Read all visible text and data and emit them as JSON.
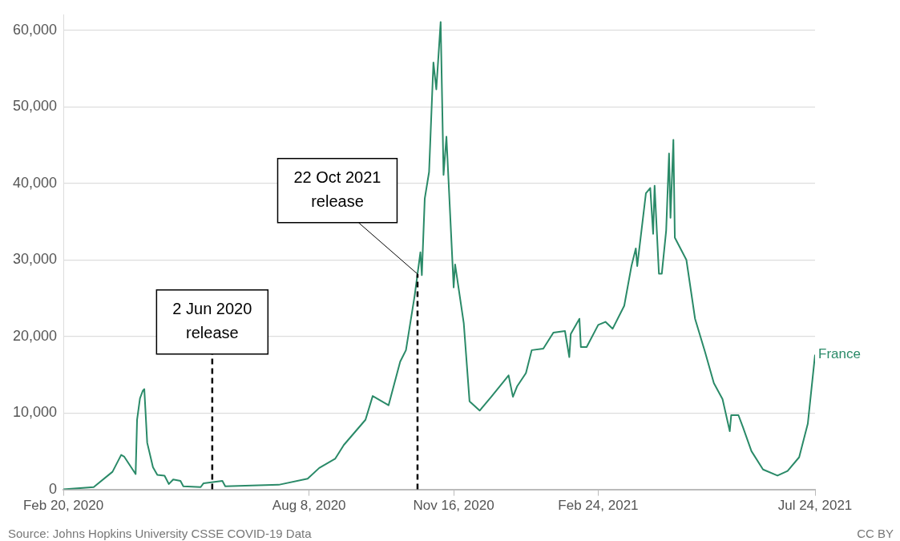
{
  "chart_data": {
    "type": "line",
    "x": [
      "2020-02-20",
      "2020-03-12",
      "2020-03-25",
      "2020-03-31",
      "2020-04-02",
      "2020-04-10",
      "2020-04-11",
      "2020-04-13",
      "2020-04-15",
      "2020-04-16",
      "2020-04-18",
      "2020-04-22",
      "2020-04-25",
      "2020-04-30",
      "2020-05-03",
      "2020-05-06",
      "2020-05-11",
      "2020-05-13",
      "2020-05-25",
      "2020-05-27",
      "2020-06-09",
      "2020-06-11",
      "2020-07-18",
      "2020-08-07",
      "2020-08-15",
      "2020-08-26",
      "2020-09-01",
      "2020-09-16",
      "2020-09-21",
      "2020-10-02",
      "2020-10-10",
      "2020-10-14",
      "2020-10-20",
      "2020-10-24",
      "2020-10-25",
      "2020-10-27",
      "2020-10-30",
      "2020-11-02",
      "2020-11-04",
      "2020-11-07",
      "2020-11-09",
      "2020-11-11",
      "2020-11-16",
      "2020-11-17",
      "2020-11-23",
      "2020-11-27",
      "2020-12-04",
      "2020-12-12",
      "2020-12-21",
      "2020-12-24",
      "2020-12-27",
      "2020-12-30",
      "2021-01-05",
      "2021-01-09",
      "2021-01-17",
      "2021-01-24",
      "2021-02-01",
      "2021-02-04",
      "2021-02-05",
      "2021-02-11",
      "2021-02-12",
      "2021-02-16",
      "2021-02-24",
      "2021-03-01",
      "2021-03-06",
      "2021-03-14",
      "2021-03-19",
      "2021-03-22",
      "2021-03-23",
      "2021-03-29",
      "2021-04-01",
      "2021-04-03",
      "2021-04-04",
      "2021-04-07",
      "2021-04-09",
      "2021-04-12",
      "2021-04-14",
      "2021-04-15",
      "2021-04-17",
      "2021-04-18",
      "2021-04-26",
      "2021-05-02",
      "2021-05-09",
      "2021-05-15",
      "2021-05-21",
      "2021-05-26",
      "2021-05-27",
      "2021-06-01",
      "2021-06-04",
      "2021-06-10",
      "2021-06-18",
      "2021-06-28",
      "2021-07-05",
      "2021-07-13",
      "2021-07-19",
      "2021-07-24"
    ],
    "series": [
      {
        "name": "France",
        "color": "#2a8a68",
        "values": [
          0,
          300,
          2300,
          4500,
          4300,
          2000,
          9100,
          11900,
          12900,
          13100,
          6100,
          2900,
          1900,
          1800,
          700,
          1300,
          1100,
          400,
          300,
          800,
          1100,
          400,
          600,
          1400,
          2800,
          4000,
          5800,
          9100,
          12200,
          11000,
          16700,
          18200,
          25300,
          31000,
          28000,
          38000,
          41500,
          55800,
          52300,
          61100,
          41100,
          46100,
          26400,
          29400,
          21700,
          11500,
          10300,
          12100,
          14200,
          14900,
          12100,
          13500,
          15200,
          18200,
          18400,
          20500,
          20700,
          17300,
          20300,
          22300,
          18600,
          18600,
          21500,
          21900,
          21000,
          24000,
          29200,
          31500,
          29200,
          38700,
          39400,
          33400,
          39700,
          28200,
          28200,
          33800,
          43900,
          35500,
          45700,
          32900,
          30000,
          22300,
          17900,
          13900,
          11800,
          7600,
          9700,
          9700,
          8200,
          5000,
          2600,
          1800,
          2400,
          4200,
          8600,
          17600
        ]
      }
    ],
    "xlim": [
      "2020-02-20",
      "2021-07-24"
    ],
    "xticks": [
      {
        "value": "2020-02-20",
        "label": "Feb 20, 2020"
      },
      {
        "value": "2020-08-08",
        "label": "Aug 8, 2020"
      },
      {
        "value": "2020-11-16",
        "label": "Nov 16, 2020"
      },
      {
        "value": "2021-02-24",
        "label": "Feb 24, 2021"
      },
      {
        "value": "2021-07-24",
        "label": "Jul 24, 2021"
      }
    ],
    "ylim": [
      0,
      62000
    ],
    "yticks": [
      {
        "value": 0,
        "label": "0"
      },
      {
        "value": 10000,
        "label": "10,000"
      },
      {
        "value": 20000,
        "label": "20,000"
      },
      {
        "value": 30000,
        "label": "30,000"
      },
      {
        "value": 40000,
        "label": "40,000"
      },
      {
        "value": 50000,
        "label": "50,000"
      },
      {
        "value": 60000,
        "label": "60,000"
      }
    ],
    "grid": "y",
    "legend": false,
    "marker": "none",
    "line_style": "solid",
    "ref_lines": [
      {
        "axis": "x",
        "value": "2020-06-02",
        "label": "2 Jun 2020\nrelease",
        "line_style": "dashed",
        "color": "#000000"
      },
      {
        "axis": "x",
        "value": "2020-10-22",
        "label": "22 Oct 2021\nrelease",
        "line_style": "dashed",
        "color": "#000000"
      }
    ],
    "annotations": [
      "Source: Johns Hopkins University CSSE COVID-19 Data",
      "CC BY"
    ]
  }
}
